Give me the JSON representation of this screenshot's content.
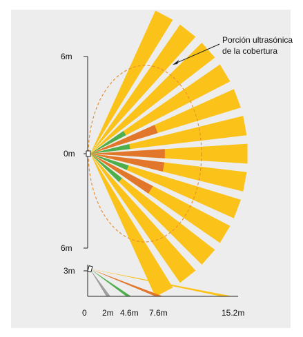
{
  "annotation": {
    "line1": "Porción ultrasónica",
    "line2": "de la cobertura"
  },
  "top_view": {
    "y_labels": [
      "6m",
      "0m",
      "6m"
    ],
    "beam_count": 13,
    "inner_ticks": [
      {
        "beam": 3,
        "color": "green"
      },
      {
        "beam": 4,
        "color": "orange"
      },
      {
        "beam": 5,
        "color": "green"
      },
      {
        "beam": 6,
        "color": "orange"
      },
      {
        "beam": 7,
        "color": "orange"
      },
      {
        "beam": 8,
        "color": "green"
      },
      {
        "beam": 9,
        "color": "orange"
      },
      {
        "beam": 10,
        "color": "green"
      }
    ]
  },
  "side_view": {
    "y_label": "3m",
    "x_ticks": [
      "0",
      "2m",
      "4.6m",
      "7.6m",
      "15.2m"
    ],
    "rays": [
      {
        "color": "gray",
        "reach": "2m"
      },
      {
        "color": "green",
        "reach": "4.6m"
      },
      {
        "color": "orange",
        "reach": "7.6m"
      },
      {
        "color": "yellow",
        "reach": "15.2m"
      }
    ]
  },
  "colors": {
    "beam": "#fbc21a",
    "green": "#4cae4c",
    "orange": "#e2762b",
    "gray": "#9e9e9e",
    "dashed": "#e9902f",
    "axis": "#222222",
    "panel": "#ededed"
  }
}
